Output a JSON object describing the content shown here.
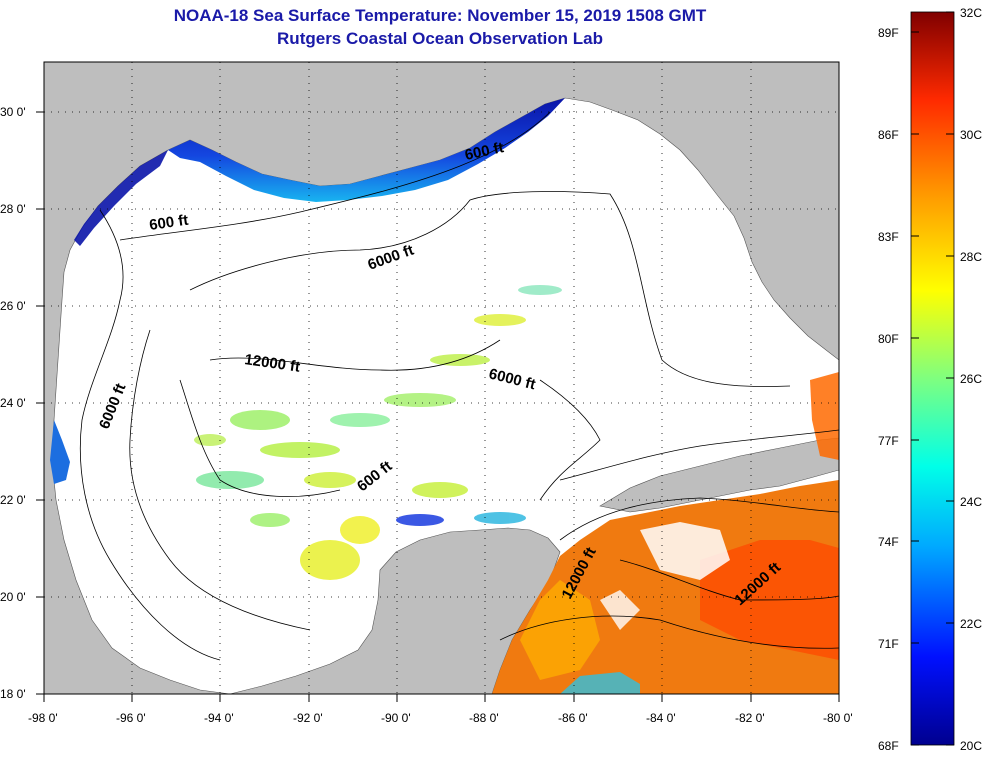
{
  "title": "NOAA-18 Sea Surface Temperature:  November 15, 2019 1508 GMT",
  "subtitle": "Rutgers Coastal Ocean Observation Lab",
  "map": {
    "lon_range": [
      -98,
      -80
    ],
    "lat_range": [
      18,
      31
    ],
    "lon_ticks": [
      "-98 0'",
      "-96 0'",
      "-94 0'",
      "-92 0'",
      "-90 0'",
      "-88 0'",
      "-86 0'",
      "-84 0'",
      "-82 0'",
      "-80 0'"
    ],
    "lat_ticks": [
      "18 0'",
      "20 0'",
      "22 0'",
      "24 0'",
      "26 0'",
      "28 0'",
      "30 0'"
    ],
    "land_color": "#bebebe",
    "water_color": "#ffffff",
    "grid": "dotted",
    "contours": [
      {
        "label": "600 ft"
      },
      {
        "label": "600 ft"
      },
      {
        "label": "600 ft"
      },
      {
        "label": "6000 ft"
      },
      {
        "label": "6000 ft"
      },
      {
        "label": "6000 ft"
      },
      {
        "label": "12000 ft"
      },
      {
        "label": "12000 ft"
      },
      {
        "label": "12000 ft"
      }
    ]
  },
  "colorbar": {
    "fahrenheit": [
      "89F",
      "86F",
      "83F",
      "80F",
      "77F",
      "74F",
      "71F",
      "68F"
    ],
    "celsius": [
      "32C",
      "30C",
      "28C",
      "26C",
      "24C",
      "22C",
      "20C"
    ],
    "range_c": [
      20,
      32
    ]
  }
}
